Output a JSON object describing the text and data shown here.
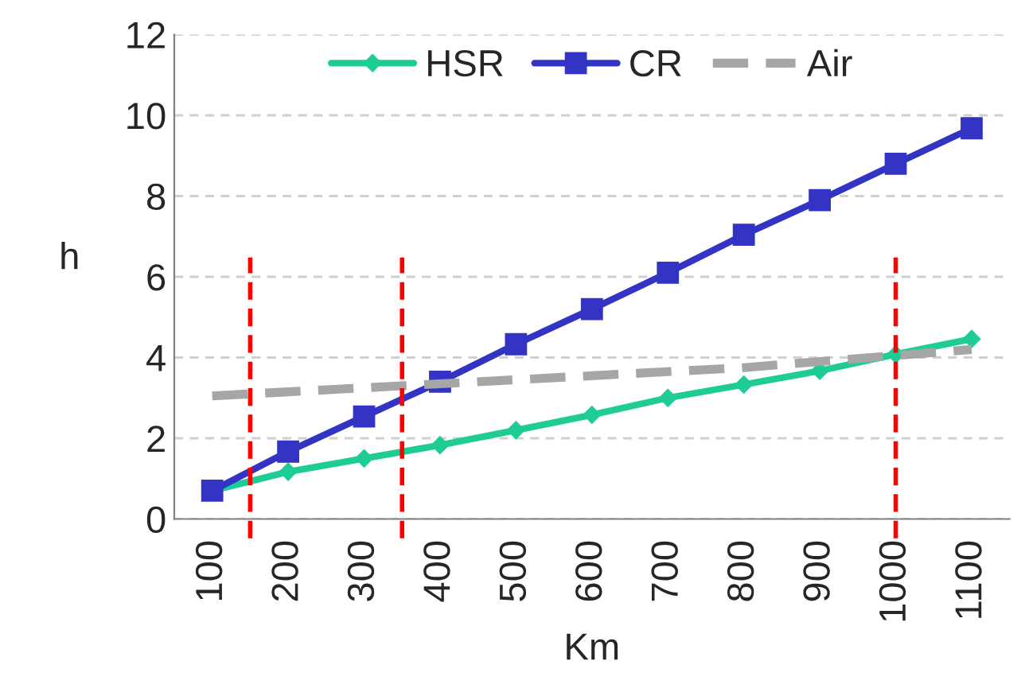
{
  "chart_data": {
    "type": "line",
    "xlabel": "Km",
    "ylabel": "h",
    "x": [
      100,
      200,
      300,
      400,
      500,
      600,
      700,
      800,
      900,
      1000,
      1100
    ],
    "series": [
      {
        "name": "HSR",
        "color": "#1fcc96",
        "marker": "diamond",
        "line_style": "solid",
        "values": [
          0.7,
          1.17,
          1.5,
          1.83,
          2.2,
          2.58,
          3.0,
          3.33,
          3.67,
          4.08,
          4.46
        ]
      },
      {
        "name": "CR",
        "color": "#3333c4",
        "marker": "square",
        "line_style": "solid",
        "values": [
          0.7,
          1.67,
          2.54,
          3.4,
          4.33,
          5.2,
          6.1,
          7.04,
          7.9,
          8.8,
          9.68
        ]
      },
      {
        "name": "Air",
        "color": "#a6a6a6",
        "marker": "none",
        "line_style": "dashed",
        "values": [
          3.05,
          3.15,
          3.25,
          3.35,
          3.45,
          3.55,
          3.65,
          3.75,
          3.9,
          4.05,
          4.2
        ]
      }
    ],
    "xlim": [
      50,
      1150
    ],
    "xticks": [
      100,
      200,
      300,
      400,
      500,
      600,
      700,
      800,
      900,
      1000,
      1100
    ],
    "ylim": [
      0,
      12
    ],
    "yticks": [
      0,
      2,
      4,
      6,
      8,
      10,
      12
    ],
    "grid": "y",
    "legend": "top",
    "ref_lines": [
      {
        "axis": "x",
        "value": 150,
        "color": "#ff0000",
        "line_style": "dashed"
      },
      {
        "axis": "x",
        "value": 350,
        "color": "#ff0000",
        "line_style": "dashed"
      },
      {
        "axis": "x",
        "value": 1000,
        "color": "#ff0000",
        "line_style": "dashed"
      }
    ]
  }
}
